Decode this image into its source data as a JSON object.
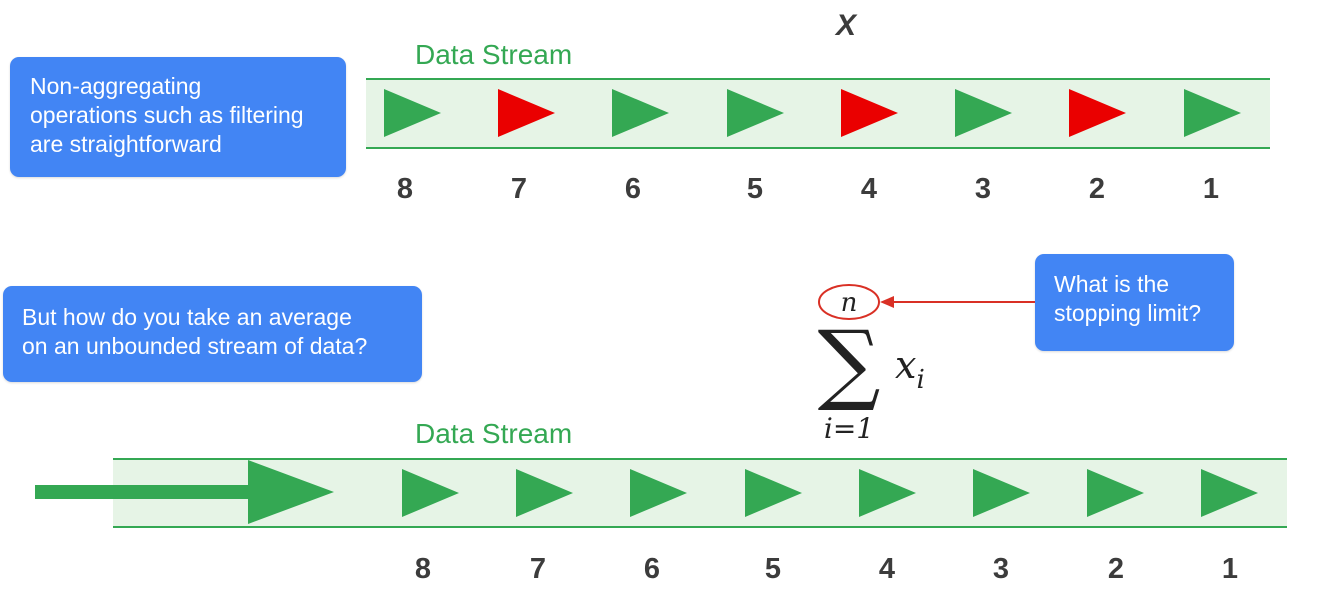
{
  "callouts": {
    "top": [
      "Non-aggregating",
      "operations such as filtering",
      "are straightforward"
    ],
    "bottom": [
      "But how do you take an average",
      "on an unbounded stream of data?"
    ],
    "right": [
      "What is the",
      "stopping limit?"
    ]
  },
  "top_stream": {
    "label": "Data Stream",
    "marker": "X",
    "items": [
      {
        "index": "8",
        "color": "#34a853"
      },
      {
        "index": "7",
        "color": "#ea0000"
      },
      {
        "index": "6",
        "color": "#34a853"
      },
      {
        "index": "5",
        "color": "#34a853"
      },
      {
        "index": "4",
        "color": "#ea0000"
      },
      {
        "index": "3",
        "color": "#34a853"
      },
      {
        "index": "2",
        "color": "#ea0000"
      },
      {
        "index": "1",
        "color": "#34a853"
      }
    ]
  },
  "bottom_stream": {
    "label": "Data Stream",
    "items": [
      {
        "index": "8",
        "color": "#34a853"
      },
      {
        "index": "7",
        "color": "#34a853"
      },
      {
        "index": "6",
        "color": "#34a853"
      },
      {
        "index": "5",
        "color": "#34a853"
      },
      {
        "index": "4",
        "color": "#34a853"
      },
      {
        "index": "3",
        "color": "#34a853"
      },
      {
        "index": "2",
        "color": "#34a853"
      },
      {
        "index": "1",
        "color": "#34a853"
      }
    ]
  },
  "formula": {
    "upper_limit": "n",
    "term": "x",
    "term_subscript": "i",
    "lower_limit": "i=1"
  },
  "colors": {
    "callout": "#4285f4",
    "stream_green": "#34a853",
    "stream_band": "#e6f4e6",
    "highlight_red": "#d93025"
  }
}
